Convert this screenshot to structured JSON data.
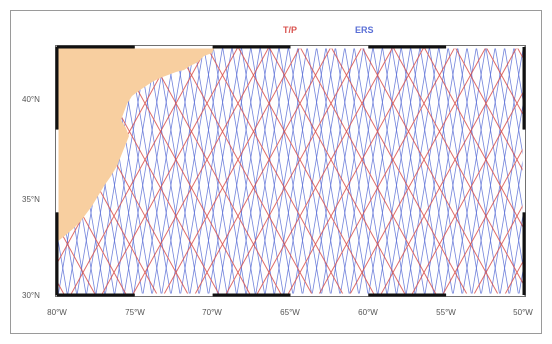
{
  "legend": [
    {
      "label": "T/P",
      "color": "#d9534f"
    },
    {
      "label": "ERS",
      "color": "#5a6fd6"
    }
  ],
  "colors": {
    "land": "#f8cfa0",
    "ocean": "#ffffff",
    "frame": "#111111"
  },
  "x_ticks": [
    "80°W",
    "75°W",
    "70°W",
    "65°W",
    "60°W",
    "55°W",
    "50°W"
  ],
  "y_ticks": [
    "40°N",
    "35°N",
    "30°N"
  ],
  "x_range": [
    -80,
    -50
  ],
  "y_range": [
    30,
    46
  ]
}
